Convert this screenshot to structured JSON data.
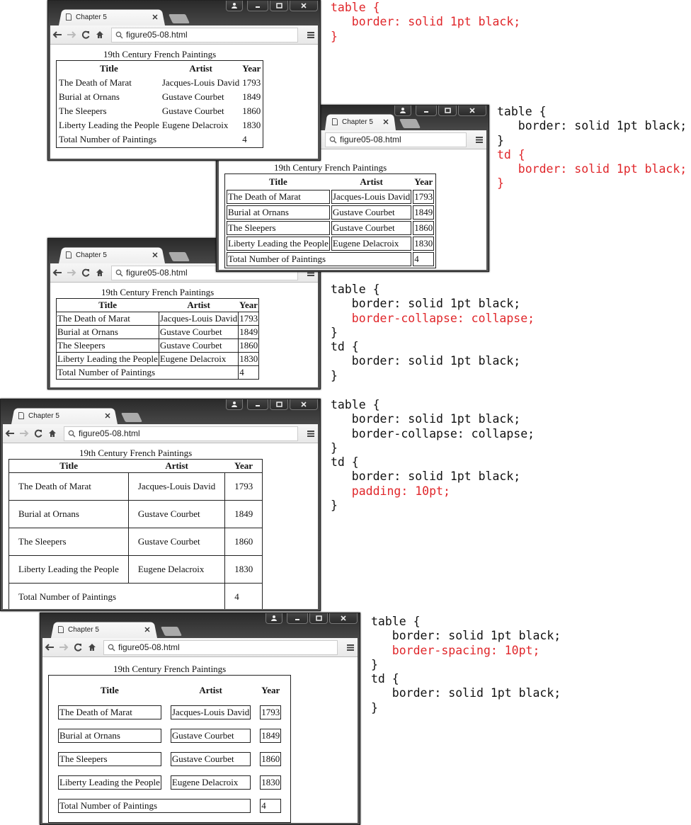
{
  "windows": [
    {
      "variant": "v1",
      "tab": "Chapter 5",
      "url": "figure05-08.html",
      "caption": "19th Century French Paintings",
      "headers": [
        "Title",
        "Artist",
        "Year"
      ],
      "rows": [
        [
          "The Death of Marat",
          "Jacques-Louis David",
          "1793"
        ],
        [
          "Burial at Ornans",
          "Gustave Courbet",
          "1849"
        ],
        [
          "The Sleepers",
          "Gustave Courbet",
          "1860"
        ],
        [
          "Liberty Leading the People",
          "Eugene Delacroix",
          "1830"
        ]
      ],
      "total_label": "Total Number of Paintings",
      "total_value": "4"
    },
    {
      "variant": "v2",
      "tab": "Chapter 5",
      "url": "figure05-08.html",
      "caption": "19th Century French Paintings",
      "headers": [
        "Title",
        "Artist",
        "Year"
      ],
      "rows": [
        [
          "The Death of Marat",
          "Jacques-Louis David",
          "1793"
        ],
        [
          "Burial at Ornans",
          "Gustave Courbet",
          "1849"
        ],
        [
          "The Sleepers",
          "Gustave Courbet",
          "1860"
        ],
        [
          "Liberty Leading the People",
          "Eugene Delacroix",
          "1830"
        ]
      ],
      "total_label": "Total Number of Paintings",
      "total_value": "4"
    },
    {
      "variant": "v3",
      "tab": "Chapter 5",
      "url": "figure05-08.html",
      "caption": "19th Century French Paintings",
      "headers": [
        "Title",
        "Artist",
        "Year"
      ],
      "rows": [
        [
          "The Death of Marat",
          "Jacques-Louis David",
          "1793"
        ],
        [
          "Burial at Ornans",
          "Gustave Courbet",
          "1849"
        ],
        [
          "The Sleepers",
          "Gustave Courbet",
          "1860"
        ],
        [
          "Liberty Leading the People",
          "Eugene Delacroix",
          "1830"
        ]
      ],
      "total_label": "Total Number of Paintings",
      "total_value": "4"
    },
    {
      "variant": "v4",
      "tab": "Chapter 5",
      "url": "figure05-08.html",
      "caption": "19th Century French Paintings",
      "headers": [
        "Title",
        "Artist",
        "Year"
      ],
      "rows": [
        [
          "The Death of Marat",
          "Jacques-Louis David",
          "1793"
        ],
        [
          "Burial at Ornans",
          "Gustave Courbet",
          "1849"
        ],
        [
          "The Sleepers",
          "Gustave Courbet",
          "1860"
        ],
        [
          "Liberty Leading the People",
          "Eugene Delacroix",
          "1830"
        ]
      ],
      "total_label": "Total Number of Paintings",
      "total_value": "4"
    },
    {
      "variant": "v5",
      "tab": "Chapter 5",
      "url": "figure05-08.html",
      "caption": "19th Century French Paintings",
      "headers": [
        "Title",
        "Artist",
        "Year"
      ],
      "rows": [
        [
          "The Death of Marat",
          "Jacques-Louis David",
          "1793"
        ],
        [
          "Burial at Ornans",
          "Gustave Courbet",
          "1849"
        ],
        [
          "The Sleepers",
          "Gustave Courbet",
          "1860"
        ],
        [
          "Liberty Leading the People",
          "Eugene Delacroix",
          "1830"
        ]
      ],
      "total_label": "Total Number of Paintings",
      "total_value": "4"
    }
  ],
  "icons": {
    "tab": "page-icon",
    "close": "close-icon",
    "back": "back-arrow-icon",
    "forward": "forward-arrow-icon",
    "reload": "reload-icon",
    "home": "home-icon",
    "search": "search-icon",
    "menu": "menu-icon"
  },
  "highlight_color": "#e0262a",
  "code_blocks": [
    {
      "lines": [
        {
          "t": "table {",
          "hl": true
        },
        {
          "t": "   border: solid 1pt black;",
          "hl": true
        },
        {
          "t": "}",
          "hl": true
        }
      ]
    },
    {
      "lines": [
        {
          "t": "table {",
          "hl": false
        },
        {
          "t": "   border: solid 1pt black;",
          "hl": false
        },
        {
          "t": "}",
          "hl": false
        },
        {
          "t": "td {",
          "hl": true
        },
        {
          "t": "   border: solid 1pt black;",
          "hl": true
        },
        {
          "t": "}",
          "hl": true
        }
      ]
    },
    {
      "lines": [
        {
          "t": "table {",
          "hl": false
        },
        {
          "t": "   border: solid 1pt black;",
          "hl": false
        },
        {
          "t": "   border-collapse: collapse;",
          "hl": true
        },
        {
          "t": "}",
          "hl": false
        },
        {
          "t": "td {",
          "hl": false
        },
        {
          "t": "   border: solid 1pt black;",
          "hl": false
        },
        {
          "t": "}",
          "hl": false
        }
      ]
    },
    {
      "lines": [
        {
          "t": "table {",
          "hl": false
        },
        {
          "t": "   border: solid 1pt black;",
          "hl": false
        },
        {
          "t": "   border-collapse: collapse;",
          "hl": false
        },
        {
          "t": "}",
          "hl": false
        },
        {
          "t": "td {",
          "hl": false
        },
        {
          "t": "   border: solid 1pt black;",
          "hl": false
        },
        {
          "t": "   padding: 10pt;",
          "hl": true
        },
        {
          "t": "}",
          "hl": false
        }
      ]
    },
    {
      "lines": [
        {
          "t": "table {",
          "hl": false
        },
        {
          "t": "   border: solid 1pt black;",
          "hl": false
        },
        {
          "t": "   border-spacing: 10pt;",
          "hl": true
        },
        {
          "t": "}",
          "hl": false
        },
        {
          "t": "td {",
          "hl": false
        },
        {
          "t": "   border: solid 1pt black;",
          "hl": false
        },
        {
          "t": "}",
          "hl": false
        }
      ]
    }
  ]
}
